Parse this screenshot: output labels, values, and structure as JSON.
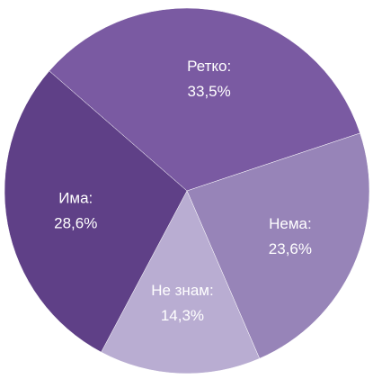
{
  "chart_data": {
    "type": "pie",
    "categories": [
      "Ретко:",
      "Нема:",
      "Не знам:",
      "Има:"
    ],
    "values": [
      33.5,
      23.6,
      14.3,
      28.6
    ],
    "value_labels": [
      "33,5%",
      "23,6%",
      "14,3%",
      "28,6%"
    ],
    "colors": [
      "#7a5aa2",
      "#9784b8",
      "#b9add2",
      "#5f4087"
    ]
  }
}
